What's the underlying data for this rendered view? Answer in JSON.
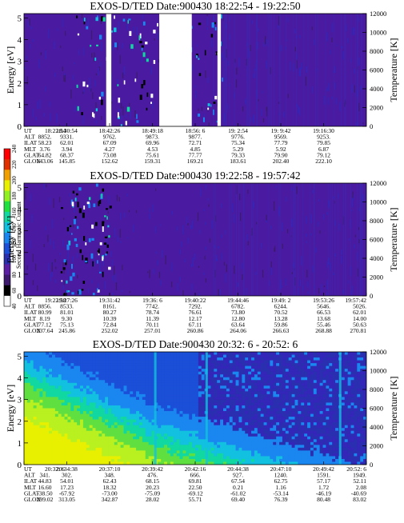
{
  "colors": {
    "scale": [
      "#ffffff",
      "#000000",
      "#3d1a6e",
      "#5b1fa3",
      "#2a2fb0",
      "#1b4fd8",
      "#1a86f0",
      "#12c0e0",
      "#10d8a0",
      "#20e040",
      "#90f020",
      "#e8f000",
      "#f0a000",
      "#e03000",
      "#ff0000"
    ],
    "background": "#4a1aa0",
    "gap": "#ffffff"
  },
  "colorbar": {
    "title": "Second Harmonic Current",
    "ticks": [
      "40",
      "60",
      "80",
      "100",
      "120",
      "140",
      "160",
      "180",
      "200",
      "220",
      "240"
    ]
  },
  "chart_data": [
    {
      "type": "heatmap",
      "title": "EXOS-D/TED",
      "date_label": "Date:900430",
      "time_range": "18:22:54 - 19:22:50",
      "ylabel": "Energy [eV]",
      "y2label": "Temperature [K]",
      "yticks": [
        "0",
        "1",
        "2",
        "3",
        "4",
        "5"
      ],
      "y2ticks": [
        "0",
        "2000",
        "4000",
        "6000",
        "8000",
        "10000",
        "12000"
      ],
      "ylim": [
        0,
        5.2
      ],
      "y2lim": [
        0,
        12000
      ],
      "data_gaps_fraction": [
        [
          0.24,
          0.255
        ],
        [
          0.395,
          0.49
        ],
        [
          0.565,
          0.575
        ]
      ],
      "table": {
        "row_labels": [
          "UT",
          "ALT",
          "ILAT",
          "MLT",
          "GLAT",
          "GLON"
        ],
        "columns": [
          [
            "18:22:54",
            "8852.",
            "58.23",
            "3.76",
            "64.82",
            "143.06"
          ],
          [
            "18:30:54",
            "9331.",
            "62.01",
            "3.94",
            "68.37",
            "145.85"
          ],
          [
            "18:42:26",
            "9762.",
            "67.09",
            "4.27",
            "73.08",
            "152.62"
          ],
          [
            "18:49:18",
            "9873.",
            "69.96",
            "4.53",
            "75.61",
            "159.31"
          ],
          [
            "18:56: 6",
            "9877.",
            "72.71",
            "4.85",
            "77.77",
            "169.21"
          ],
          [
            "19: 2:54",
            "9776.",
            "75.34",
            "5.29",
            "79.33",
            "183.61"
          ],
          [
            "19: 9:42",
            "9569.",
            "77.79",
            "5.92",
            "79.90",
            "202.40"
          ],
          [
            "19:16:30",
            "9253.",
            "79.85",
            "6.87",
            "79.12",
            "222.10"
          ]
        ]
      }
    },
    {
      "type": "heatmap",
      "title": "EXOS-D/TED",
      "date_label": "Date:900430",
      "time_range": "19:22:58 - 19:57:42",
      "ylabel": "Energy [eV]",
      "y2label": "Temperature [K]",
      "yticks": [
        "0",
        "1",
        "2",
        "3",
        "4",
        "5"
      ],
      "y2ticks": [
        "0",
        "2000",
        "4000",
        "6000",
        "8000",
        "10000",
        "12000"
      ],
      "ylim": [
        0,
        5.2
      ],
      "y2lim": [
        0,
        12000
      ],
      "table": {
        "row_labels": [
          "UT",
          "ALT",
          "ILAT",
          "MLT",
          "GLAT",
          "GLON"
        ],
        "columns": [
          [
            "19:22:58",
            "8856.",
            "80.99",
            "8.19",
            "77.12",
            "237.64"
          ],
          [
            "19:27:26",
            "8533.",
            "81.01",
            "9.30",
            "75.13",
            "245.86"
          ],
          [
            "19:31:42",
            "8161.",
            "80.27",
            "10.39",
            "72.84",
            "252.02"
          ],
          [
            "19:36: 6",
            "7742.",
            "78.74",
            "11.39",
            "70.11",
            "257.01"
          ],
          [
            "19:40:22",
            "7292.",
            "76.61",
            "12.17",
            "67.11",
            "260.86"
          ],
          [
            "19:44:46",
            "6782.",
            "73.80",
            "12.80",
            "63.64",
            "264.06"
          ],
          [
            "19:49: 2",
            "6244.",
            "70.52",
            "13.28",
            "59.86",
            "266.63"
          ],
          [
            "19:53:26",
            "5646.",
            "66.53",
            "13.68",
            "55.46",
            "268.88"
          ],
          [
            "19:57:42",
            "5026.",
            "62.01",
            "14.00",
            "50.63",
            "270.81"
          ]
        ]
      }
    },
    {
      "type": "heatmap",
      "title": "EXOS-D/TED",
      "date_label": "Date:900430",
      "time_range": "20:32: 6 - 20:52: 6",
      "ylabel": "Energy [eV]",
      "y2label": "Temperature [K]",
      "yticks": [
        "0",
        "1",
        "2",
        "3",
        "4",
        "5"
      ],
      "y2ticks": [
        "0",
        "2000",
        "4000",
        "6000",
        "8000",
        "10000",
        "12000"
      ],
      "ylim": [
        0,
        5.2
      ],
      "y2lim": [
        0,
        12000
      ],
      "table": {
        "row_labels": [
          "UT",
          "ALT",
          "ILAT",
          "MLT",
          "GLAT",
          "GLON"
        ],
        "columns": [
          [
            "20:32: 6",
            "341.",
            "44.83",
            "16.60",
            "-38.50",
            "299.02"
          ],
          [
            "20:34:38",
            "302.",
            "54.01",
            "17.23",
            "-67.92",
            "313.05"
          ],
          [
            "20:37:10",
            "348.",
            "62.43",
            "18.32",
            "-73.00",
            "342.87"
          ],
          [
            "20:39:42",
            "476.",
            "68.15",
            "20.23",
            "-75.09",
            "28.02"
          ],
          [
            "20:42:16",
            "666.",
            "69.81",
            "22.50",
            "-69.12",
            "55.71"
          ],
          [
            "20:44:38",
            "927.",
            "67.54",
            "0.21",
            "-61.02",
            "69.40"
          ],
          [
            "20:47:10",
            "1240.",
            "62.75",
            "1.16",
            "-53.14",
            "76.39"
          ],
          [
            "20:49:42",
            "1591.",
            "57.17",
            "1.72",
            "-46.19",
            "80.48"
          ],
          [
            "20:52: 6",
            "1949.",
            "52.11",
            "2.08",
            "-40.69",
            "83.02"
          ]
        ]
      }
    }
  ]
}
